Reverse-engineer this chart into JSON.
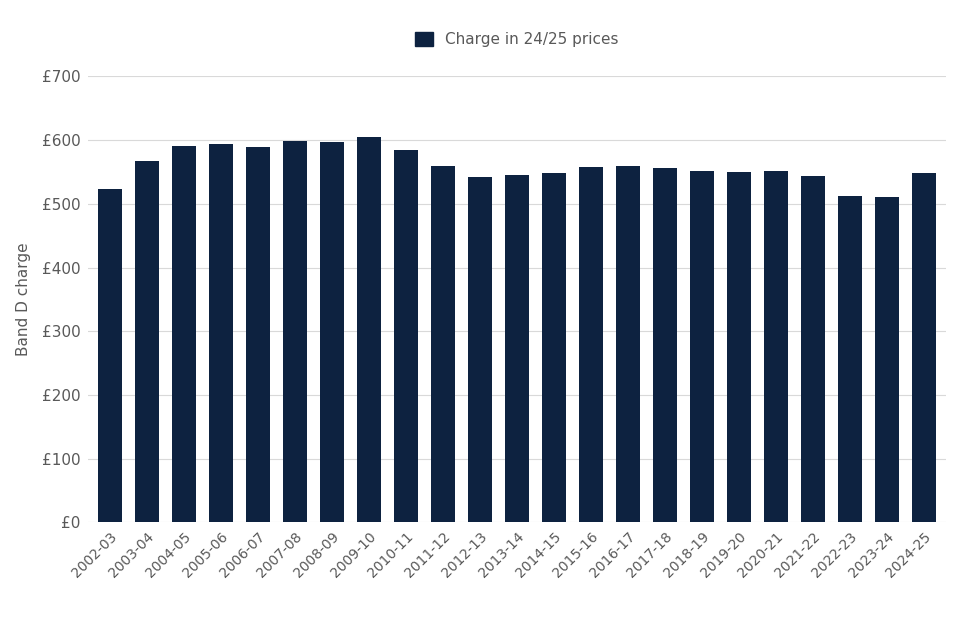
{
  "categories": [
    "2002-03",
    "2003-04",
    "2004-05",
    "2005-06",
    "2006-07",
    "2007-08",
    "2008-09",
    "2009-10",
    "2010-11",
    "2011-12",
    "2012-13",
    "2013-14",
    "2014-15",
    "2015-16",
    "2016-17",
    "2017-18",
    "2018-19",
    "2019-20",
    "2020-21",
    "2021-22",
    "2022-23",
    "2023-24",
    "2024-25"
  ],
  "values": [
    524,
    568,
    591,
    594,
    589,
    598,
    597,
    605,
    584,
    559,
    542,
    546,
    549,
    558,
    560,
    557,
    551,
    550,
    551,
    543,
    513,
    510,
    548
  ],
  "bar_color": "#0d2240",
  "legend_label": "Charge in 24/25 prices",
  "ylabel": "Band D charge",
  "ylim": [
    0,
    700
  ],
  "yticks": [
    0,
    100,
    200,
    300,
    400,
    500,
    600,
    700
  ],
  "ytick_labels": [
    "£0",
    "£100",
    "£200",
    "£300",
    "£400",
    "£500",
    "£600",
    "£700"
  ],
  "background_color": "#ffffff",
  "grid_color": "#d9d9d9",
  "bar_width": 0.65,
  "tick_label_color": "#595959",
  "ylabel_color": "#595959",
  "legend_text_color": "#595959"
}
